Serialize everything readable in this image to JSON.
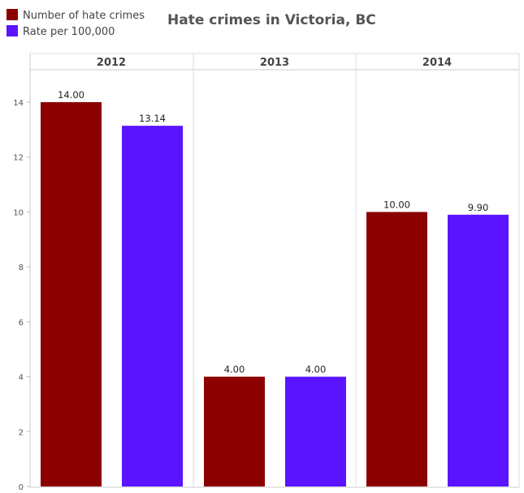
{
  "chart_data": {
    "type": "bar",
    "title": "Hate crimes in Victoria, BC",
    "categories": [
      "2012",
      "2013",
      "2014"
    ],
    "series": [
      {
        "name": "Number of hate crimes",
        "color": "#8B0000",
        "values": [
          14.0,
          4.0,
          10.0
        ],
        "labels": [
          "14.00",
          "4.00",
          "10.00"
        ]
      },
      {
        "name": "Rate per 100,000",
        "color": "#5A14FF",
        "values": [
          13.14,
          4.0,
          9.9
        ],
        "labels": [
          "13.14",
          "4.00",
          "9.90"
        ]
      }
    ],
    "ylim": [
      0,
      15.9
    ],
    "yticks": [
      0,
      2,
      4,
      6,
      8,
      10,
      12,
      14
    ],
    "xlabel": "",
    "ylabel": "",
    "grid": false,
    "legend_position": "top-left"
  }
}
